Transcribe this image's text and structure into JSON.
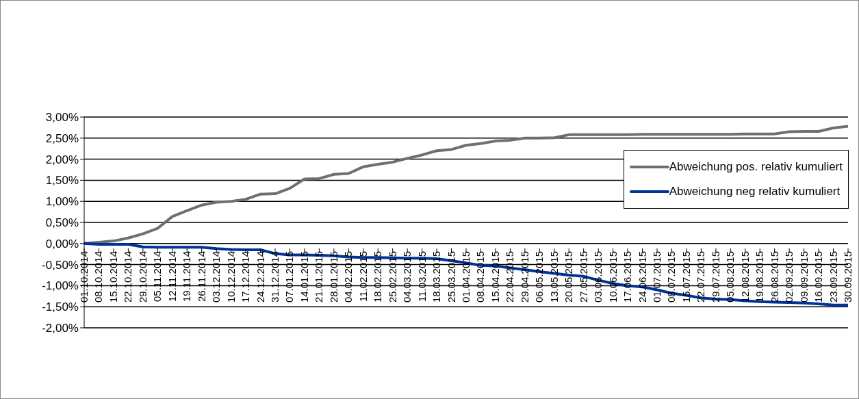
{
  "chart_data": {
    "type": "line",
    "categories": [
      "01.10.2014",
      "08.10.2014",
      "15.10.2014",
      "22.10.2014",
      "29.10.2014",
      "05.11.2014",
      "12.11.2014",
      "19.11.2014",
      "26.11.2014",
      "03.12.2014",
      "10.12.2014",
      "17.12.2014",
      "24.12.2014",
      "31.12.2014",
      "07.01.2015",
      "14.01.2015",
      "21.01.2015",
      "28.01.2015",
      "04.02.2015",
      "11.02.2015",
      "18.02.2015",
      "25.02.2015",
      "04.03.2015",
      "11.03.2015",
      "18.03.2015",
      "25.03.2015",
      "01.04.2015",
      "08.04.2015",
      "15.04.2015",
      "22.04.2015",
      "29.04.2015",
      "06.05.2015",
      "13.05.2015",
      "20.05.2015",
      "27.05.2015",
      "03.06.2015",
      "10.06.2015",
      "17.06.2015",
      "24.06.2015",
      "01.07.2015",
      "08.07.2015",
      "15.07.2015",
      "22.07.2015",
      "29.07.2015",
      "05.08.2015",
      "12.08.2015",
      "19.08.2015",
      "26.08.2015",
      "02.09.2015",
      "09.09.2015",
      "16.09.2015",
      "23.09.2015",
      "30.09.2015"
    ],
    "series": [
      {
        "name": "Abweichung pos. relativ kumuliert",
        "color": "#6f6f6f",
        "values": [
          0,
          0.03,
          0.06,
          0.13,
          0.23,
          0.36,
          0.64,
          0.78,
          0.91,
          0.98,
          1.0,
          1.05,
          1.17,
          1.18,
          1.31,
          1.53,
          1.54,
          1.64,
          1.66,
          1.82,
          1.88,
          1.93,
          2.02,
          2.1,
          2.2,
          2.23,
          2.33,
          2.37,
          2.43,
          2.45,
          2.5,
          2.5,
          2.51,
          2.58,
          2.58,
          2.58,
          2.58,
          2.58,
          2.59,
          2.59,
          2.59,
          2.59,
          2.59,
          2.59,
          2.59,
          2.6,
          2.6,
          2.6,
          2.65,
          2.66,
          2.66,
          2.74,
          2.78
        ]
      },
      {
        "name": "Abweichung neg relativ kumuliert",
        "color": "#003399",
        "values": [
          0,
          -0.02,
          -0.02,
          -0.02,
          -0.08,
          -0.09,
          -0.09,
          -0.09,
          -0.09,
          -0.12,
          -0.14,
          -0.15,
          -0.15,
          -0.24,
          -0.27,
          -0.27,
          -0.28,
          -0.29,
          -0.32,
          -0.33,
          -0.33,
          -0.34,
          -0.35,
          -0.35,
          -0.36,
          -0.41,
          -0.46,
          -0.52,
          -0.53,
          -0.58,
          -0.62,
          -0.67,
          -0.71,
          -0.75,
          -0.78,
          -0.87,
          -0.95,
          -1.0,
          -1.03,
          -1.1,
          -1.18,
          -1.23,
          -1.29,
          -1.32,
          -1.33,
          -1.36,
          -1.38,
          -1.39,
          -1.4,
          -1.41,
          -1.43,
          -1.46,
          -1.46
        ]
      }
    ],
    "ylim": [
      -2,
      3
    ],
    "yticks": [
      {
        "value": -2,
        "label": "-2,00%"
      },
      {
        "value": -1.5,
        "label": "-1,50%"
      },
      {
        "value": -1,
        "label": "-1,00%"
      },
      {
        "value": -0.5,
        "label": "-0,50%"
      },
      {
        "value": 0,
        "label": "0,00%"
      },
      {
        "value": 0.5,
        "label": "0,50%"
      },
      {
        "value": 1,
        "label": "1,00%"
      },
      {
        "value": 1.5,
        "label": "1,50%"
      },
      {
        "value": 2,
        "label": "2,00%"
      },
      {
        "value": 2.5,
        "label": "2,50%"
      },
      {
        "value": 3,
        "label": "3,00%"
      }
    ],
    "grid": "y",
    "legend": "top right",
    "marker": "none",
    "line_style": "solid"
  }
}
